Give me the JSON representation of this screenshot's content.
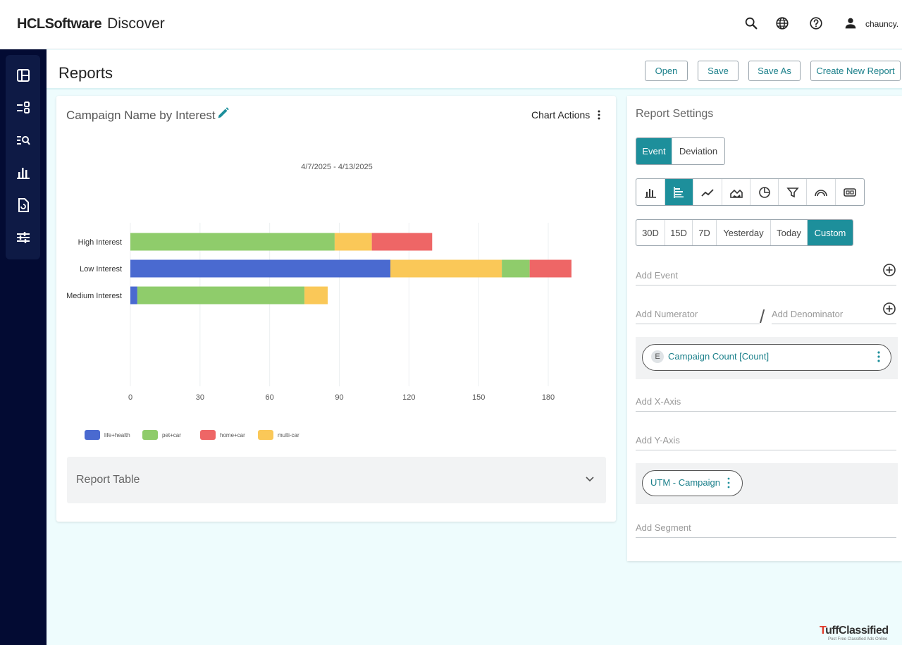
{
  "header": {
    "brand": "HCLSoftware",
    "product": "Discover",
    "user": "chauncy."
  },
  "page": {
    "title": "Reports",
    "buttons": [
      "Open",
      "Save",
      "Save As",
      "Create New Report"
    ]
  },
  "chart_panel": {
    "title": "Campaign Name by Interest",
    "actions_label": "Chart Actions",
    "report_table_label": "Report Table"
  },
  "chart_data": {
    "type": "bar",
    "orientation": "horizontal",
    "stacked": true,
    "subtitle": "4/7/2025 - 4/13/2025",
    "categories": [
      "High Interest",
      "Low Interest",
      "Medium Interest"
    ],
    "series": [
      {
        "name": "life+health",
        "color": "#4a6ad0",
        "values": [
          0,
          112,
          3
        ]
      },
      {
        "name": "pet+car",
        "color": "#8fcc6b",
        "values": [
          88,
          0,
          72
        ]
      },
      {
        "name": "multi-car",
        "color": "#fac858",
        "values": [
          16,
          48,
          10
        ]
      },
      {
        "name": "home+car",
        "color": "#ee6666",
        "values": [
          26,
          0,
          0
        ]
      },
      {
        "name": "pet+car",
        "color": "#8fcc6b",
        "values": [
          0,
          12,
          0
        ]
      },
      {
        "name": "home+car",
        "color": "#ee6666",
        "values": [
          0,
          18,
          0
        ]
      }
    ],
    "legend": [
      {
        "name": "life+health",
        "color": "#4a6ad0"
      },
      {
        "name": "pet+car",
        "color": "#8fcc6b"
      },
      {
        "name": "home+car",
        "color": "#ee6666"
      },
      {
        "name": "multi-car",
        "color": "#fac858"
      }
    ],
    "x_ticks": [
      0,
      30,
      60,
      90,
      120,
      150,
      180
    ],
    "xlim": [
      0,
      180
    ],
    "grid": true,
    "legend_position": "bottom-left"
  },
  "settings": {
    "title": "Report Settings",
    "mode_options": [
      "Event",
      "Deviation"
    ],
    "mode_active": "Event",
    "chart_types": [
      "bar-chart-icon",
      "horizontal-bar-icon",
      "line-chart-icon",
      "area-chart-icon",
      "pie-chart-icon",
      "funnel-icon",
      "gauge-icon",
      "counter-icon"
    ],
    "chart_type_active": "horizontal-bar-icon",
    "ranges": [
      "30D",
      "15D",
      "7D",
      "Yesterday",
      "Today",
      "Custom"
    ],
    "range_active": "Custom",
    "add_event": "Add Event",
    "add_numerator": "Add Numerator",
    "add_denominator": "Add Denominator",
    "event_badge": "E",
    "event_pill": "Campaign Count [Count]",
    "add_x_axis": "Add X-Axis",
    "add_y_axis": "Add Y-Axis",
    "dimension_pill": "UTM - Campaign",
    "add_segment": "Add Segment"
  },
  "watermark": {
    "name_a": "T",
    "name_b": "uffClassified",
    "tagline": "Post Free Classified Ads Online"
  },
  "colors": {
    "accent": "#1d8f9b",
    "sidebar": "#030b33"
  }
}
